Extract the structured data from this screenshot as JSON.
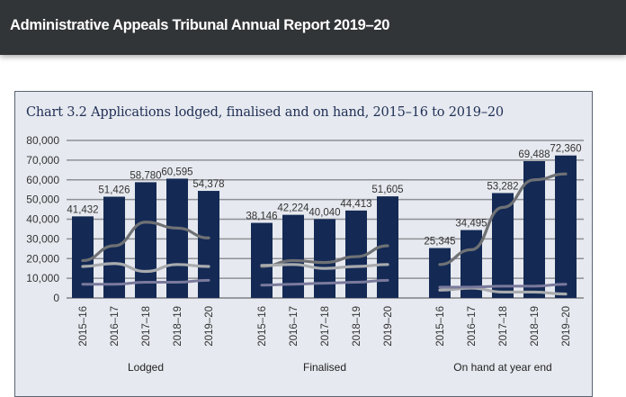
{
  "header": {
    "title": "Administrative Appeals Tribunal Annual Report 2019–20"
  },
  "colors": {
    "header_bg": "#323538",
    "panel_bg": "#e6e9ef",
    "bar": "#142a55",
    "line_dark": "#6f7174",
    "line_light": "#a9abae",
    "line_purple": "#7a7a9c",
    "title": "#1f2f56"
  },
  "chart_data": {
    "type": "bar",
    "title": "Chart 3.2 Applications lodged, finalised and on hand, 2015–16 to 2019–20",
    "xlabel": "",
    "ylabel": "",
    "ylim": [
      0,
      80000
    ],
    "yticks": [
      0,
      10000,
      20000,
      30000,
      40000,
      50000,
      60000,
      70000,
      80000
    ],
    "ytick_labels": [
      "0",
      "10,000",
      "20,000",
      "30,000",
      "40,000",
      "50,000",
      "60,000",
      "70,000",
      "80,000"
    ],
    "grid": true,
    "legend": "none",
    "categories": [
      "2015–16",
      "2016–17",
      "2017–18",
      "2018–19",
      "2019–20"
    ],
    "groups": [
      {
        "name": "Lodged",
        "values": [
          41432,
          51426,
          58780,
          60595,
          54378
        ],
        "labels": [
          "41,432",
          "51,426",
          "58,780",
          "60,595",
          "54,378"
        ],
        "overlay_lines": [
          {
            "name": "trend-dark",
            "values": [
              19000,
              26500,
              38500,
              35500,
              30500
            ]
          },
          {
            "name": "trend-light",
            "values": [
              16000,
              17500,
              13500,
              17000,
              16000
            ]
          },
          {
            "name": "trend-purple",
            "values": [
              7000,
              7000,
              8000,
              8000,
              9000
            ]
          }
        ]
      },
      {
        "name": "Finalised",
        "values": [
          38146,
          42224,
          40040,
          44413,
          51605
        ],
        "labels": [
          "38,146",
          "42,224",
          "40,040",
          "44,413",
          "51,605"
        ],
        "overlay_lines": [
          {
            "name": "trend-dark",
            "values": [
              16000,
              19000,
              18000,
              21000,
              26500
            ]
          },
          {
            "name": "trend-light",
            "values": [
              16500,
              17000,
              15000,
              16000,
              17000
            ]
          },
          {
            "name": "trend-purple",
            "values": [
              6500,
              7000,
              7500,
              8000,
              9000
            ]
          }
        ]
      },
      {
        "name": "On hand at year end",
        "values": [
          25345,
          34495,
          53282,
          69488,
          72360
        ],
        "labels": [
          "25,345",
          "34,495",
          "53,282",
          "69,488",
          "72,360"
        ],
        "overlay_lines": [
          {
            "name": "trend-dark",
            "values": [
              17000,
              24500,
              46000,
              60000,
              63000
            ]
          },
          {
            "name": "trend-light",
            "values": [
              4000,
              5000,
              3000,
              3000,
              2000
            ]
          },
          {
            "name": "trend-purple",
            "values": [
              5500,
              5500,
              6000,
              6000,
              7000
            ]
          }
        ]
      }
    ]
  }
}
